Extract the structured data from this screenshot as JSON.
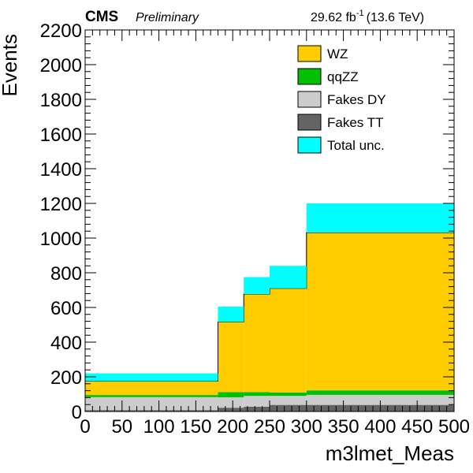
{
  "header": {
    "experiment": "CMS",
    "status": "Preliminary",
    "lumi_value": "29.62 fb",
    "lumi_exp": "-1",
    "energy": "(13.6 TeV)"
  },
  "chart_data": {
    "type": "bar",
    "stacked": true,
    "xlabel": "m3lmet_Meas",
    "ylabel": "Events",
    "xlim": [
      0,
      500
    ],
    "ylim": [
      0,
      2200
    ],
    "bins": [
      [
        0,
        180
      ],
      [
        180,
        215
      ],
      [
        215,
        250
      ],
      [
        250,
        300
      ],
      [
        300,
        500
      ]
    ],
    "x_ticks": [
      "0",
      "50",
      "100",
      "150",
      "200",
      "250",
      "300",
      "350",
      "400",
      "450",
      "500"
    ],
    "y_ticks": [
      "0",
      "200",
      "400",
      "600",
      "800",
      "1000",
      "1200",
      "1400",
      "1600",
      "1800",
      "2000",
      "2200"
    ],
    "series": [
      {
        "name": "Fakes TT",
        "color": "#646464",
        "values": [
          8,
          22,
          28,
          38,
          38
        ]
      },
      {
        "name": "Fakes DY",
        "color": "#cccccc",
        "values": [
          75,
          60,
          62,
          52,
          58
        ]
      },
      {
        "name": "qqZZ",
        "color": "#00c000",
        "values": [
          12,
          30,
          22,
          20,
          26
        ]
      },
      {
        "name": "WZ",
        "color": "#ffcc00",
        "values": [
          80,
          405,
          565,
          600,
          910
        ]
      }
    ],
    "uncertainty": {
      "name": "Total unc.",
      "color": "#00ffff",
      "low": [
        175,
        517,
        677,
        710,
        1032
      ],
      "high": [
        220,
        605,
        775,
        840,
        1200
      ]
    },
    "legend_order": [
      "WZ",
      "qqZZ",
      "Fakes DY",
      "Fakes TT",
      "Total unc."
    ],
    "legend_placement": "top-right"
  }
}
